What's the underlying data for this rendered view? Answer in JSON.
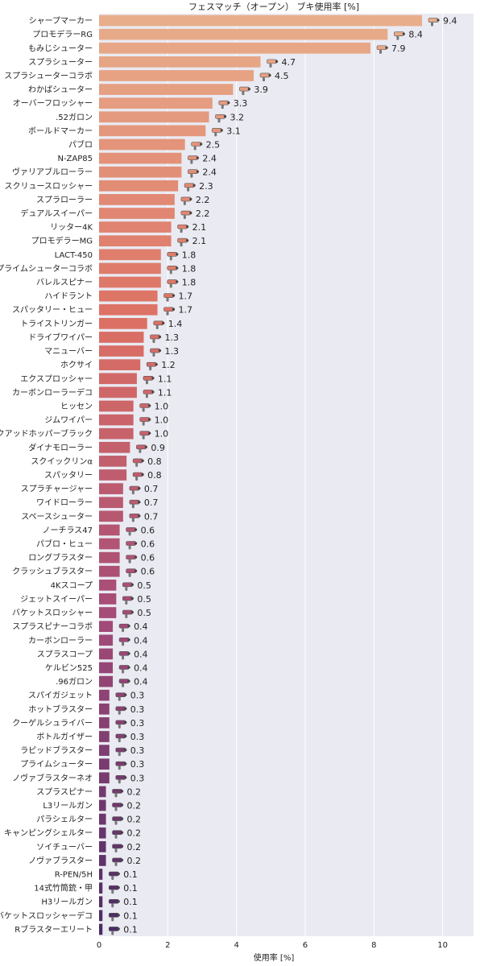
{
  "chart_data": {
    "type": "bar",
    "orientation": "horizontal",
    "title": "フェスマッチ（オープン） ブキ使用率 [%]",
    "xlabel": "使用率 [%]",
    "ylabel": "",
    "xlim": [
      0,
      10.9
    ],
    "xticks": [
      0,
      2,
      4,
      6,
      8,
      10
    ],
    "grid": true,
    "legend": "none",
    "background": "#eaeaf2",
    "color_gradient": [
      "#e8ad8a",
      "#dc7064",
      "#a24a78",
      "#4b2c66"
    ],
    "icons": "weapon-icon per bar",
    "categories": [
      "シャープマーカー",
      "プロモデラーRG",
      "もみじシューター",
      "スプラシューター",
      "スプラシューターコラボ",
      "わかばシューター",
      "オーバーフロッシャー",
      ".52ガロン",
      "ボールドマーカー",
      "パブロ",
      "N-ZAP85",
      "ヴァリアブルローラー",
      "スクリュースロッシャー",
      "スプラローラー",
      "デュアルスイーパー",
      "リッター4K",
      "プロモデラーMG",
      "LACT-450",
      "プライムシューターコラボ",
      "バレルスピナー",
      "ハイドラント",
      "スパッタリー・ヒュー",
      "トライストリンガー",
      "ドライブワイパー",
      "マニューバー",
      "ホクサイ",
      "エクスプロッシャー",
      "カーボンローラーデコ",
      "ヒッセン",
      "ジムワイパー",
      "クアッドホッパーブラック",
      "ダイナモローラー",
      "スクイックリンα",
      "スパッタリー",
      "スプラチャージャー",
      "ワイドローラー",
      "スペースシューター",
      "ノーチラス47",
      "パブロ・ヒュー",
      "ロングブラスター",
      "クラッシュブラスター",
      "4Kスコープ",
      "ジェットスイーパー",
      "バケットスロッシャー",
      "スプラスピナーコラボ",
      "カーボンローラー",
      "スプラスコープ",
      "ケルビン525",
      ".96ガロン",
      "スパイガジェット",
      "ホットブラスター",
      "クーゲルシュライバー",
      "ボトルガイザー",
      "ラピッドブラスター",
      "プライムシューター",
      "ノヴァブラスターネオ",
      "スプラスピナー",
      "L3リールガン",
      "パラシェルター",
      "キャンピングシェルター",
      "ソイチューバー",
      "ノヴァブラスター",
      "R-PEN/5H",
      "14式竹筒銃・甲",
      "H3リールガン",
      "バケットスロッシャーデコ",
      "Rブラスターエリート"
    ],
    "values": [
      9.4,
      8.4,
      7.9,
      4.7,
      4.5,
      3.9,
      3.3,
      3.2,
      3.1,
      2.5,
      2.4,
      2.4,
      2.3,
      2.2,
      2.2,
      2.1,
      2.1,
      1.8,
      1.8,
      1.8,
      1.7,
      1.7,
      1.4,
      1.3,
      1.3,
      1.2,
      1.1,
      1.1,
      1.0,
      1.0,
      1.0,
      0.9,
      0.8,
      0.8,
      0.7,
      0.7,
      0.7,
      0.6,
      0.6,
      0.6,
      0.6,
      0.5,
      0.5,
      0.5,
      0.4,
      0.4,
      0.4,
      0.4,
      0.4,
      0.3,
      0.3,
      0.3,
      0.3,
      0.3,
      0.3,
      0.3,
      0.2,
      0.2,
      0.2,
      0.2,
      0.2,
      0.2,
      0.1,
      0.1,
      0.1,
      0.1,
      0.1
    ],
    "value_labels": [
      "9.4",
      "8.4",
      "7.9",
      "4.7",
      "4.5",
      "3.9",
      "3.3",
      "3.2",
      "3.1",
      "2.5",
      "2.4",
      "2.4",
      "2.3",
      "2.2",
      "2.2",
      "2.1",
      "2.1",
      "1.8",
      "1.8",
      "1.8",
      "1.7",
      "1.7",
      "1.4",
      "1.3",
      "1.3",
      "1.2",
      "1.1",
      "1.1",
      "1.0",
      "1.0",
      "1.0",
      "0.9",
      "0.8",
      "0.8",
      "0.7",
      "0.7",
      "0.7",
      "0.6",
      "0.6",
      "0.6",
      "0.6",
      "0.5",
      "0.5",
      "0.5",
      "0.4",
      "0.4",
      "0.4",
      "0.4",
      "0.4",
      "0.3",
      "0.3",
      "0.3",
      "0.3",
      "0.3",
      "0.3",
      "0.3",
      "0.2",
      "0.2",
      "0.2",
      "0.2",
      "0.2",
      "0.2",
      "0.1",
      "0.1",
      "0.1",
      "0.1",
      "0.1"
    ]
  }
}
